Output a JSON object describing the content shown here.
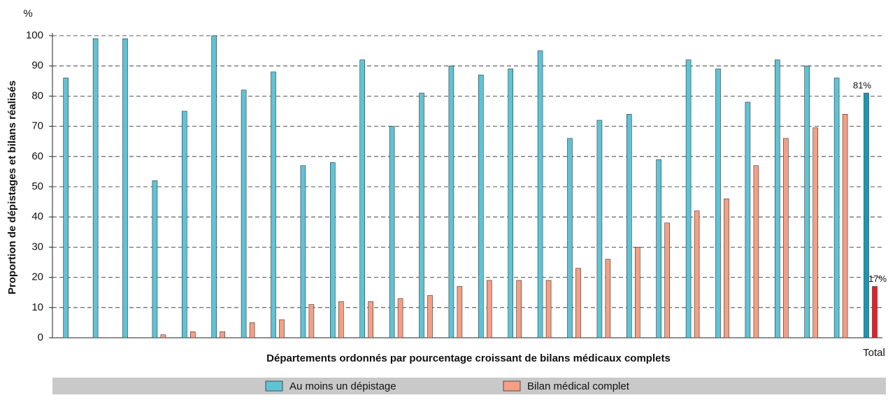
{
  "chart_data": {
    "type": "bar",
    "y_unit": "%",
    "y_label": "Proportion de dépistages et bilans réalisés",
    "x_label": "Départements ordonnés par pourcentage croissant de bilans médicaux complets",
    "categories": [
      null,
      null,
      null,
      null,
      null,
      null,
      null,
      null,
      null,
      null,
      null,
      null,
      null,
      null,
      null,
      null,
      null,
      null,
      null,
      null,
      null,
      null,
      null,
      null,
      null,
      null,
      null,
      "Total"
    ],
    "series": [
      {
        "name": "Au moins un dépistage",
        "color": "#5fc3d6",
        "total_color": "#1a97b5",
        "values": [
          86,
          99,
          99,
          52,
          75,
          100,
          82,
          88,
          57,
          58,
          92,
          70,
          81,
          90,
          87,
          89,
          95,
          66,
          72,
          74,
          59,
          92,
          89,
          78,
          92,
          90,
          86,
          81
        ],
        "value_labels": [
          null,
          null,
          null,
          null,
          null,
          null,
          null,
          null,
          null,
          null,
          null,
          null,
          null,
          null,
          null,
          null,
          null,
          null,
          null,
          null,
          null,
          null,
          null,
          null,
          null,
          null,
          null,
          "81%"
        ]
      },
      {
        "name": "Bilan médical complet",
        "color": "#f59f84",
        "total_color": "#e3202a",
        "values": [
          0,
          0,
          0,
          1,
          2,
          2,
          5,
          6,
          11,
          12,
          12,
          13,
          14,
          17,
          19,
          19,
          19,
          23,
          26,
          30,
          38,
          42,
          46,
          57,
          66,
          69.5,
          74,
          17
        ],
        "value_labels": [
          null,
          null,
          null,
          null,
          null,
          null,
          null,
          null,
          null,
          null,
          null,
          null,
          null,
          null,
          null,
          null,
          null,
          null,
          null,
          null,
          null,
          null,
          null,
          null,
          null,
          null,
          null,
          "17%"
        ]
      }
    ],
    "ylim": [
      0,
      100
    ],
    "yticks": [
      0,
      10,
      20,
      30,
      40,
      50,
      60,
      70,
      80,
      90,
      100
    ],
    "grid": true,
    "legend": "bottom"
  }
}
